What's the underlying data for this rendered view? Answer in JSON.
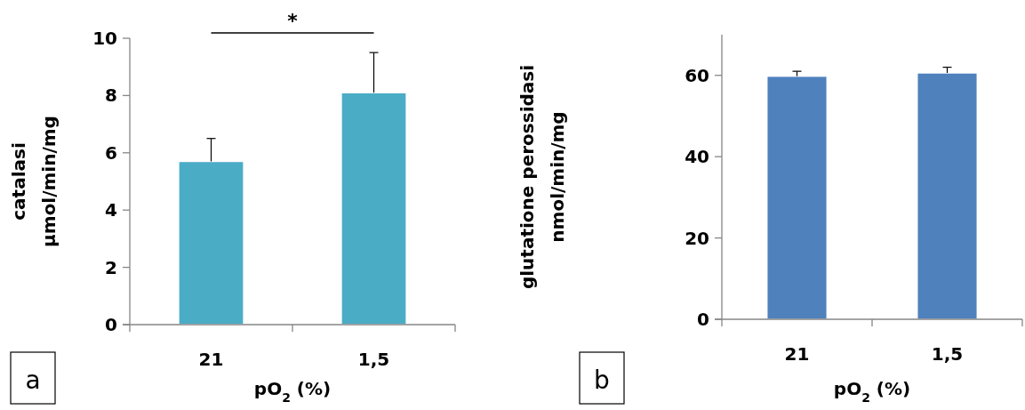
{
  "chart_data": [
    {
      "type": "bar",
      "title": "a",
      "ylabel": "catalasi\nμmol/min/mg",
      "xlabel": "pO$_{2}$ (%)",
      "categories": [
        "21",
        "1,5"
      ],
      "values": [
        5.7,
        8.1
      ],
      "color": "#4bacc6",
      "errors": [
        [
          5.7,
          6.5
        ],
        [
          8.1,
          9.5
        ]
      ],
      "ylim": [
        0,
        10
      ],
      "yticks": [
        0,
        2,
        4,
        6,
        8,
        10
      ],
      "annotations": [
        "*"
      ]
    },
    {
      "type": "bar",
      "title": "b",
      "ylabel": "glutatione perossidasi\nnmol/min/mg",
      "xlabel": "pO$_{2}$ (%)",
      "categories": [
        "21",
        "1,5"
      ],
      "values": [
        59.8,
        60.6
      ],
      "color": "#4f81bd",
      "errors": [
        [
          59.8,
          61
        ],
        [
          60.6,
          62
        ]
      ],
      "ylim": [
        0,
        70
      ],
      "yticks": [
        0,
        20,
        40,
        60
      ]
    }
  ]
}
